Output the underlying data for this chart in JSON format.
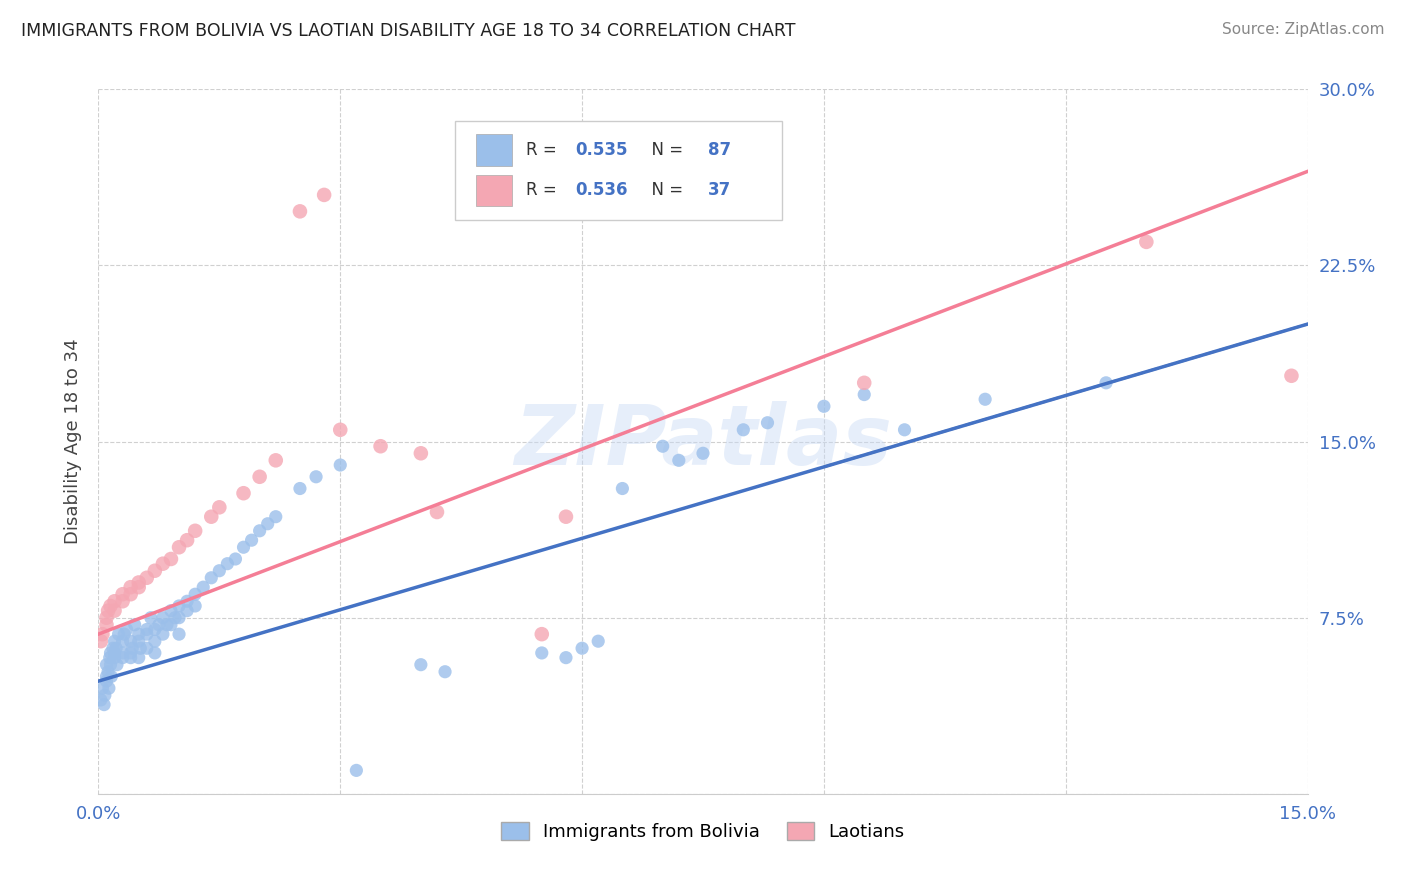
{
  "title": "IMMIGRANTS FROM BOLIVIA VS LAOTIAN DISABILITY AGE 18 TO 34 CORRELATION CHART",
  "source": "Source: ZipAtlas.com",
  "ylabel": "Disability Age 18 to 34",
  "xlim": [
    0.0,
    0.15
  ],
  "ylim": [
    0.0,
    0.3
  ],
  "xtick_positions": [
    0.0,
    0.03,
    0.06,
    0.09,
    0.12,
    0.15
  ],
  "xtick_labels": [
    "0.0%",
    "",
    "",
    "",
    "",
    "15.0%"
  ],
  "ytick_positions": [
    0.0,
    0.075,
    0.15,
    0.225,
    0.3
  ],
  "ytick_labels": [
    "",
    "7.5%",
    "15.0%",
    "22.5%",
    "30.0%"
  ],
  "bolivia_color": "#9bbfea",
  "laotian_color": "#f4a7b3",
  "bolivia_line_color": "#4472c4",
  "laotian_line_color": "#f47e96",
  "dashed_line_color": "#aaaaaa",
  "watermark": "ZIPatlas",
  "bolivia_line_x0": 0.0,
  "bolivia_line_y0": 0.048,
  "bolivia_line_x1": 0.15,
  "bolivia_line_y1": 0.2,
  "laotian_line_x0": 0.0,
  "laotian_line_y0": 0.068,
  "laotian_line_x1": 0.15,
  "laotian_line_y1": 0.265,
  "dashed_line_start_x": 0.09,
  "bolivia_x": [
    0.0003,
    0.0005,
    0.0007,
    0.0008,
    0.001,
    0.001,
    0.001,
    0.0012,
    0.0013,
    0.0014,
    0.0015,
    0.0015,
    0.0016,
    0.0018,
    0.002,
    0.002,
    0.002,
    0.0022,
    0.0023,
    0.0025,
    0.003,
    0.003,
    0.003,
    0.0032,
    0.0035,
    0.004,
    0.004,
    0.004,
    0.0042,
    0.0045,
    0.005,
    0.005,
    0.005,
    0.0052,
    0.006,
    0.006,
    0.006,
    0.0065,
    0.007,
    0.007,
    0.007,
    0.0075,
    0.008,
    0.008,
    0.0085,
    0.009,
    0.009,
    0.0095,
    0.01,
    0.01,
    0.01,
    0.011,
    0.011,
    0.012,
    0.012,
    0.013,
    0.014,
    0.015,
    0.016,
    0.017,
    0.018,
    0.019,
    0.02,
    0.021,
    0.022,
    0.025,
    0.027,
    0.03,
    0.032,
    0.04,
    0.043,
    0.055,
    0.058,
    0.06,
    0.062,
    0.065,
    0.07,
    0.072,
    0.075,
    0.08,
    0.083,
    0.09,
    0.095,
    0.1,
    0.11,
    0.125
  ],
  "bolivia_y": [
    0.04,
    0.045,
    0.038,
    0.042,
    0.05,
    0.048,
    0.055,
    0.052,
    0.045,
    0.058,
    0.06,
    0.055,
    0.05,
    0.062,
    0.06,
    0.058,
    0.065,
    0.062,
    0.055,
    0.068,
    0.065,
    0.06,
    0.058,
    0.068,
    0.07,
    0.065,
    0.06,
    0.058,
    0.062,
    0.072,
    0.068,
    0.065,
    0.058,
    0.062,
    0.07,
    0.068,
    0.062,
    0.075,
    0.07,
    0.065,
    0.06,
    0.072,
    0.075,
    0.068,
    0.072,
    0.078,
    0.072,
    0.075,
    0.08,
    0.075,
    0.068,
    0.082,
    0.078,
    0.085,
    0.08,
    0.088,
    0.092,
    0.095,
    0.098,
    0.1,
    0.105,
    0.108,
    0.112,
    0.115,
    0.118,
    0.13,
    0.135,
    0.14,
    0.01,
    0.055,
    0.052,
    0.06,
    0.058,
    0.062,
    0.065,
    0.13,
    0.148,
    0.142,
    0.145,
    0.155,
    0.158,
    0.165,
    0.17,
    0.155,
    0.168,
    0.175
  ],
  "laotian_x": [
    0.0003,
    0.0005,
    0.001,
    0.001,
    0.0012,
    0.0015,
    0.002,
    0.002,
    0.003,
    0.003,
    0.004,
    0.004,
    0.005,
    0.005,
    0.006,
    0.007,
    0.008,
    0.009,
    0.01,
    0.011,
    0.012,
    0.014,
    0.015,
    0.018,
    0.02,
    0.022,
    0.025,
    0.028,
    0.03,
    0.035,
    0.04,
    0.042,
    0.055,
    0.058,
    0.095,
    0.13,
    0.148
  ],
  "laotian_y": [
    0.065,
    0.068,
    0.072,
    0.075,
    0.078,
    0.08,
    0.082,
    0.078,
    0.085,
    0.082,
    0.088,
    0.085,
    0.09,
    0.088,
    0.092,
    0.095,
    0.098,
    0.1,
    0.105,
    0.108,
    0.112,
    0.118,
    0.122,
    0.128,
    0.135,
    0.142,
    0.248,
    0.255,
    0.155,
    0.148,
    0.145,
    0.12,
    0.068,
    0.118,
    0.175,
    0.235,
    0.178
  ]
}
